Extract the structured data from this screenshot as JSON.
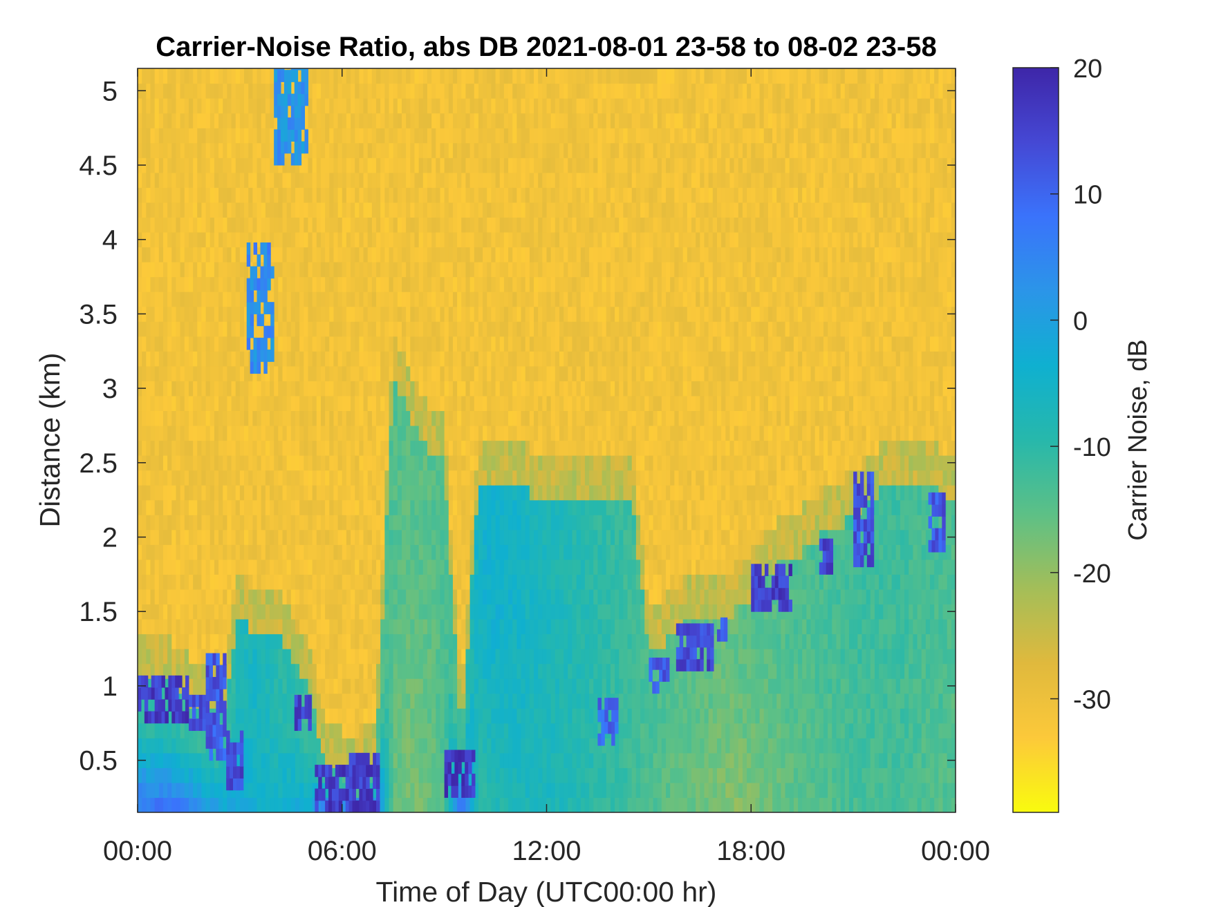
{
  "chart_data": {
    "type": "heatmap",
    "title": "Carrier-Noise Ratio, abs DB 2021-08-01 23-58 to 08-02 23-58",
    "xlabel": "Time of Day (UTC00:00 hr)",
    "ylabel": "Distance (km)",
    "x_ticks": [
      "00:00",
      "06:00",
      "12:00",
      "18:00",
      "00:00"
    ],
    "x_tick_hours": [
      0,
      6,
      12,
      18,
      24
    ],
    "xlim_hours": [
      0,
      24
    ],
    "y_ticks": [
      "0.5",
      "1",
      "1.5",
      "2",
      "2.5",
      "3",
      "3.5",
      "4",
      "4.5",
      "5"
    ],
    "y_tick_values": [
      0.5,
      1,
      1.5,
      2,
      2.5,
      3,
      3.5,
      4,
      4.5,
      5
    ],
    "ylim_km": [
      0.15,
      5.15
    ],
    "colorbar": {
      "label": "Carrier Noise, dB",
      "ticks": [
        "20",
        "10",
        "0",
        "-10",
        "-20",
        "-30"
      ],
      "tick_values": [
        20,
        10,
        0,
        -10,
        -20,
        -30
      ],
      "range": [
        -39,
        20
      ],
      "colormap": "parula (reversed)",
      "colors_low_to_high": [
        "#f9fb0e",
        "#fcc93a",
        "#e0b93d",
        "#a4be58",
        "#5dc086",
        "#27b8ab",
        "#0fb0d0",
        "#2b95e8",
        "#3a73fb",
        "#4548d4",
        "#3e26a8"
      ]
    },
    "profile_grid": {
      "time_hours": [
        0,
        0.5,
        1,
        1.5,
        2,
        2.5,
        3,
        3.5,
        4,
        4.5,
        5,
        5.5,
        6,
        6.5,
        7,
        7.5,
        8,
        8.5,
        9,
        9.5,
        10,
        10.5,
        11,
        11.5,
        12,
        12.5,
        13,
        13.5,
        14,
        14.5,
        15,
        15.5,
        16,
        16.5,
        17,
        17.5,
        18,
        18.5,
        19,
        19.5,
        20,
        20.5,
        21,
        21.5,
        22,
        22.5,
        23,
        23.5,
        24
      ],
      "boundary_layer_top_km": [
        1.1,
        1.05,
        1.0,
        0.9,
        0.85,
        0.8,
        1.5,
        1.3,
        1.4,
        1.2,
        1.0,
        0.5,
        0.4,
        0.4,
        0.5,
        3.1,
        2.8,
        2.6,
        2.5,
        0.6,
        2.4,
        2.4,
        2.35,
        2.3,
        2.3,
        2.3,
        2.3,
        2.3,
        2.3,
        2.3,
        1.2,
        1.3,
        1.4,
        1.45,
        1.45,
        1.5,
        1.6,
        1.75,
        1.85,
        1.9,
        2.0,
        2.05,
        2.15,
        2.25,
        2.35,
        2.35,
        2.35,
        2.3,
        2.2
      ],
      "near_surface_dB": [
        8,
        9,
        9,
        6,
        2,
        0,
        -2,
        -4,
        -6,
        -2,
        -3,
        12,
        12,
        12,
        8,
        -16,
        -18,
        -17,
        -14,
        12,
        -10,
        -9,
        -8,
        -7,
        -7,
        -8,
        -9,
        -10,
        -11,
        -12,
        -14,
        -15,
        -16,
        -17,
        -18,
        -19,
        -18,
        -17,
        -16,
        -15,
        -14,
        -14,
        -13,
        -13,
        -13,
        -13,
        -14,
        -14,
        -15
      ],
      "mid_layer_dB": [
        -10,
        -11,
        -10,
        -11,
        -11,
        -12,
        -8,
        -6,
        -9,
        -10,
        -12,
        -13,
        -12,
        -13,
        -14,
        -14,
        -15,
        -15,
        -14,
        -12,
        -5,
        -4,
        -5,
        -6,
        -7,
        -8,
        -9,
        -10,
        -11,
        -12,
        -13,
        -14,
        -15,
        -15,
        -16,
        -16,
        -15,
        -15,
        -14,
        -14,
        -13,
        -13,
        -12,
        -12,
        -12,
        -12,
        -13,
        -13,
        -14
      ]
    },
    "strong_echo_patches": [
      {
        "t0": 0.0,
        "t1": 1.5,
        "d0": 0.75,
        "d1": 1.05,
        "dB": 16
      },
      {
        "t0": 1.5,
        "t1": 2.0,
        "d0": 0.7,
        "d1": 0.9,
        "dB": 14
      },
      {
        "t0": 2.0,
        "t1": 2.6,
        "d0": 0.5,
        "d1": 1.2,
        "dB": 12
      },
      {
        "t0": 2.6,
        "t1": 3.1,
        "d0": 0.3,
        "d1": 0.65,
        "dB": 14
      },
      {
        "t0": 4.6,
        "t1": 5.0,
        "d0": 0.7,
        "d1": 0.9,
        "dB": 15
      },
      {
        "t0": 5.2,
        "t1": 6.2,
        "d0": 0.15,
        "d1": 0.45,
        "dB": 16
      },
      {
        "t0": 6.2,
        "t1": 7.0,
        "d0": 0.15,
        "d1": 0.5,
        "dB": 16
      },
      {
        "t0": 9.0,
        "t1": 9.8,
        "d0": 0.25,
        "d1": 0.55,
        "dB": 17
      },
      {
        "t0": 13.5,
        "t1": 14.0,
        "d0": 0.6,
        "d1": 0.9,
        "dB": 10
      },
      {
        "t0": 15.0,
        "t1": 15.5,
        "d0": 0.95,
        "d1": 1.15,
        "dB": 12
      },
      {
        "t0": 15.8,
        "t1": 16.9,
        "d0": 1.1,
        "d1": 1.4,
        "dB": 14
      },
      {
        "t0": 17.0,
        "t1": 17.3,
        "d0": 1.3,
        "d1": 1.45,
        "dB": 12
      },
      {
        "t0": 18.0,
        "t1": 19.2,
        "d0": 1.5,
        "d1": 1.8,
        "dB": 16
      },
      {
        "t0": 20.0,
        "t1": 20.4,
        "d0": 1.75,
        "d1": 1.95,
        "dB": 15
      },
      {
        "t0": 21.0,
        "t1": 21.6,
        "d0": 1.8,
        "d1": 2.4,
        "dB": 13
      },
      {
        "t0": 23.2,
        "t1": 23.7,
        "d0": 1.9,
        "d1": 2.3,
        "dB": 12
      }
    ],
    "aloft_echo_patches": [
      {
        "t0": 3.2,
        "t1": 4.0,
        "d0": 3.1,
        "d1": 3.95,
        "dB": 4
      },
      {
        "t0": 4.0,
        "t1": 4.9,
        "d0": 4.5,
        "d1": 5.15,
        "dB": 3
      }
    ]
  }
}
